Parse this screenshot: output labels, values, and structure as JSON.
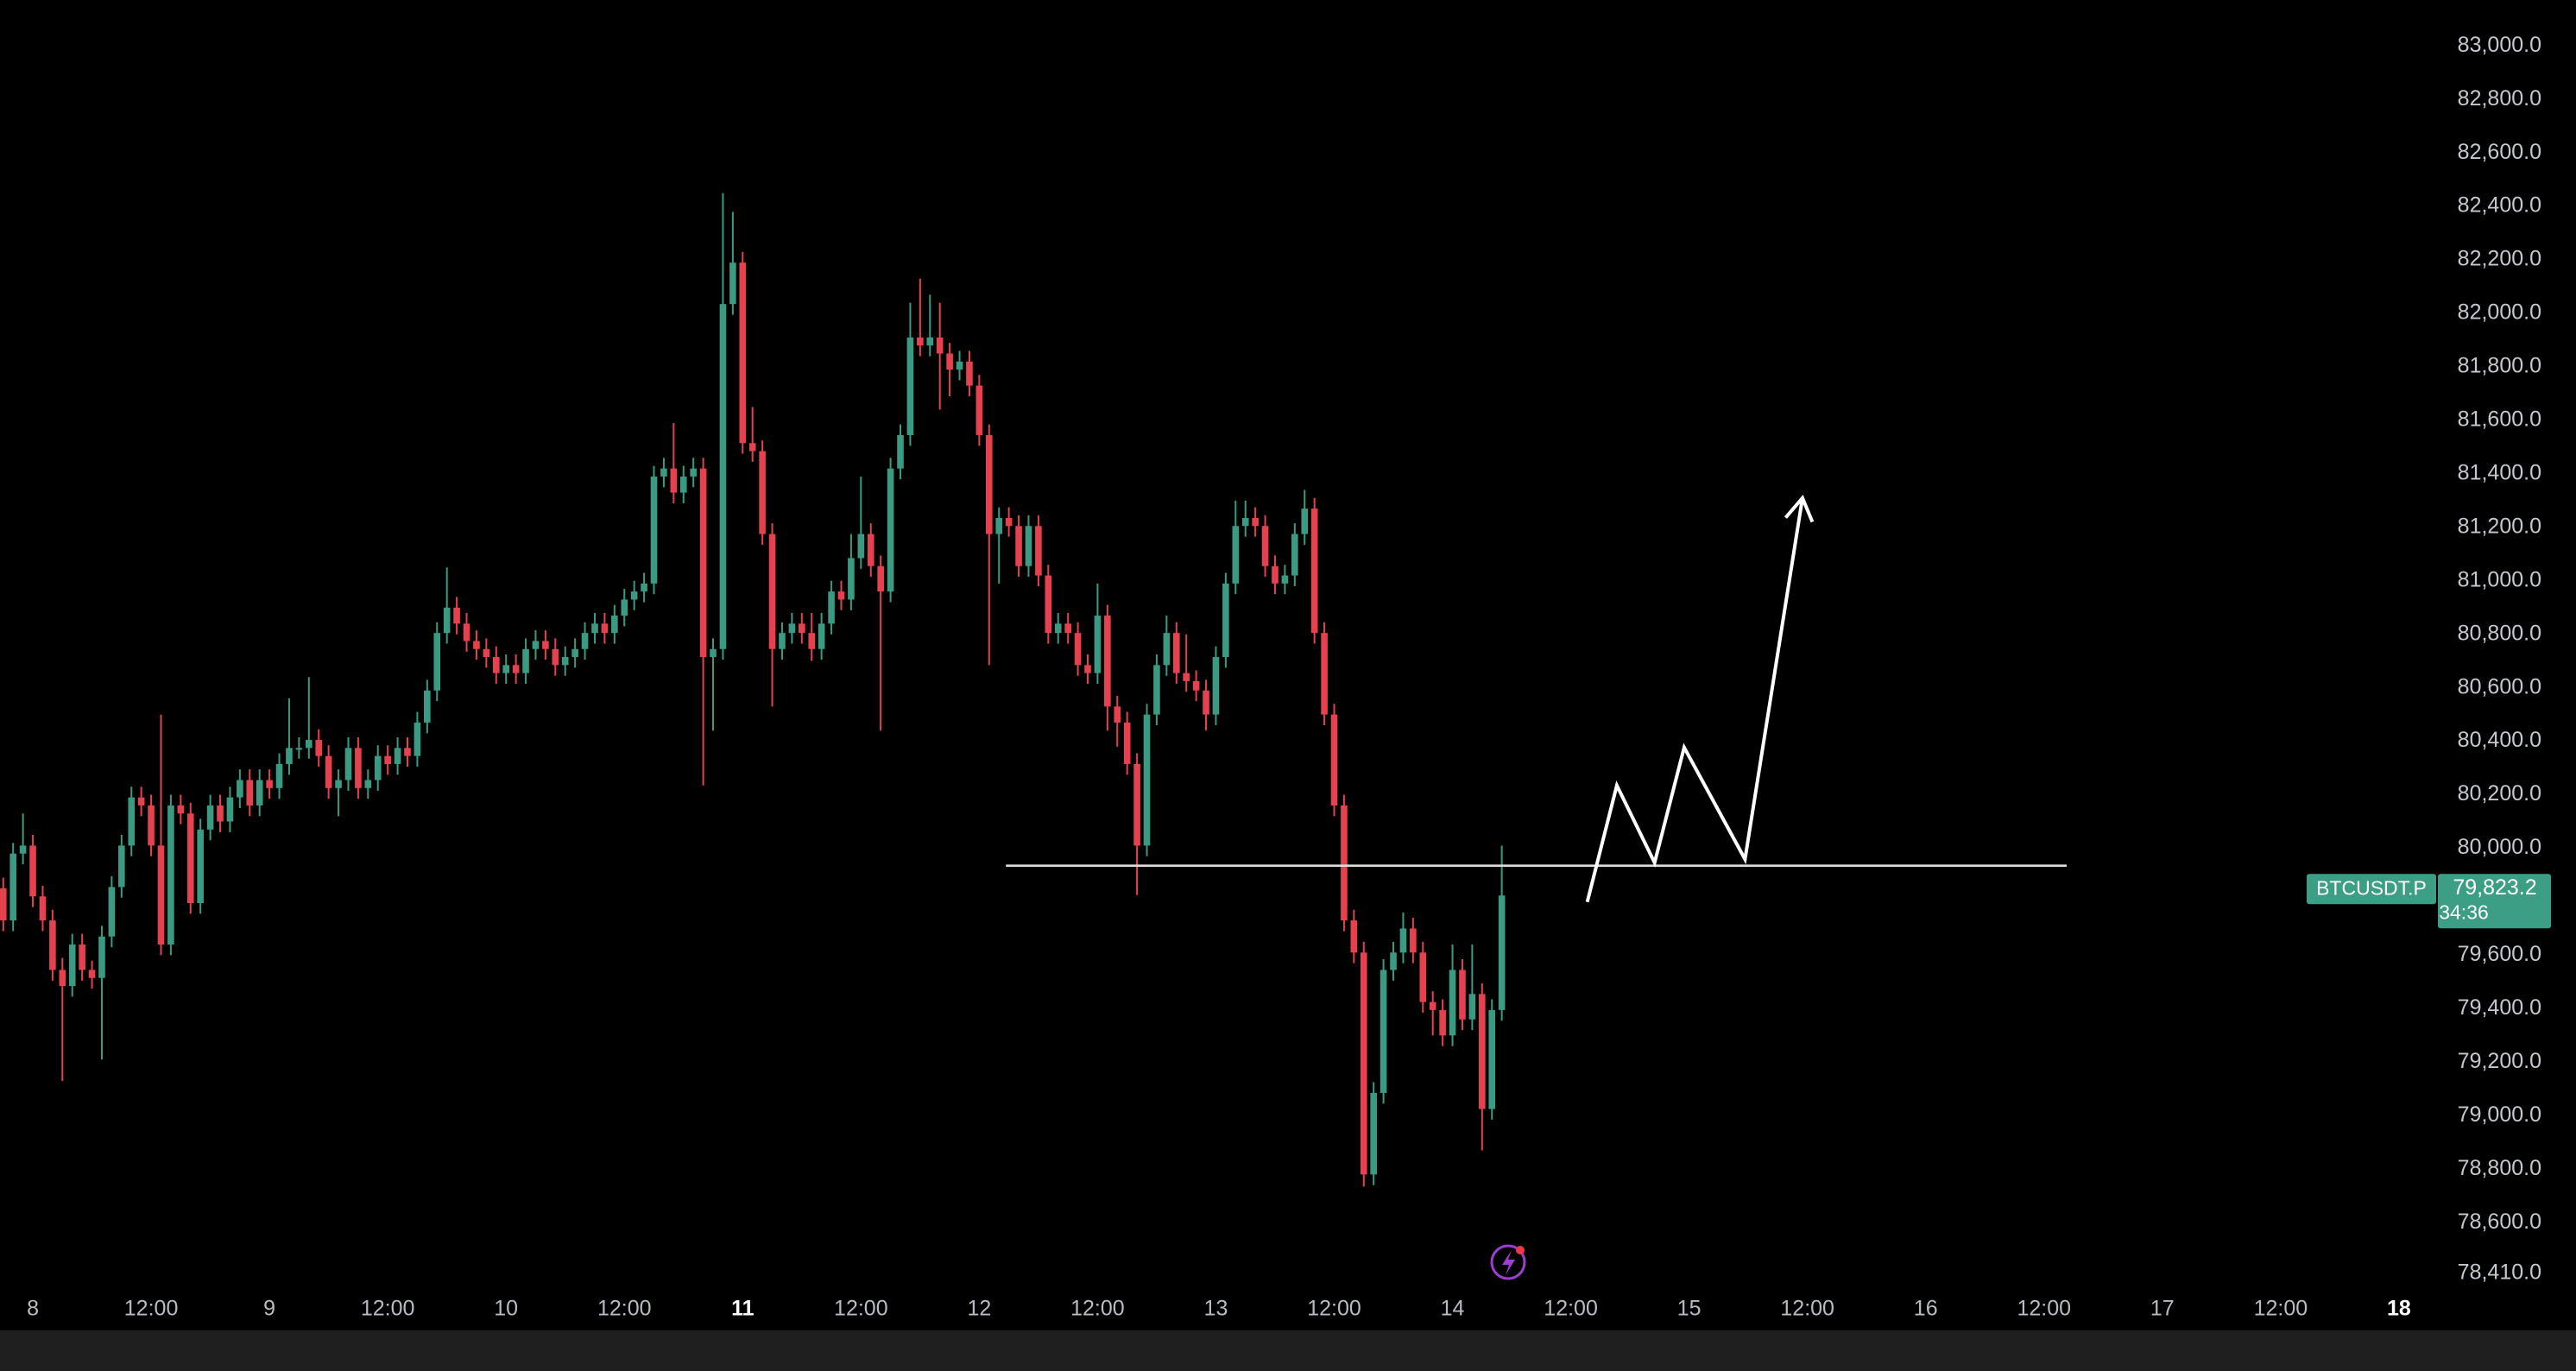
{
  "chart_data": {
    "type": "candlestick",
    "symbol": "BTCUSDT.P",
    "countdown": "34:36",
    "last_price": {
      "value": 79823.2,
      "label": "79,823.2"
    },
    "up_color": "#3a9b82",
    "down_color": "#e5414f",
    "xlim": [
      -3.33,
      243.6
    ],
    "ylim": [
      78410,
      83172
    ],
    "xticks": [
      {
        "value": 0,
        "label": "8"
      },
      {
        "value": 12,
        "label": "12:00"
      },
      {
        "value": 24,
        "label": "9"
      },
      {
        "value": 36,
        "label": "12:00"
      },
      {
        "value": 48,
        "label": "10"
      },
      {
        "value": 60,
        "label": "12:00"
      },
      {
        "value": 72,
        "label": "11",
        "bold": true
      },
      {
        "value": 84,
        "label": "12:00"
      },
      {
        "value": 96,
        "label": "12"
      },
      {
        "value": 108,
        "label": "12:00"
      },
      {
        "value": 120,
        "label": "13"
      },
      {
        "value": 132,
        "label": "12:00"
      },
      {
        "value": 144,
        "label": "14"
      },
      {
        "value": 156,
        "label": "12:00"
      },
      {
        "value": 168,
        "label": "15"
      },
      {
        "value": 180,
        "label": "12:00"
      },
      {
        "value": 192,
        "label": "16"
      },
      {
        "value": 204,
        "label": "12:00"
      },
      {
        "value": 216,
        "label": "17"
      },
      {
        "value": 228,
        "label": "12:00"
      },
      {
        "value": 240,
        "label": "18",
        "bold": true
      }
    ],
    "yticks": [
      {
        "value": 83000,
        "label": "83,000.0"
      },
      {
        "value": 82800,
        "label": "82,800.0"
      },
      {
        "value": 82600,
        "label": "82,600.0"
      },
      {
        "value": 82400,
        "label": "82,400.0"
      },
      {
        "value": 82200,
        "label": "82,200.0"
      },
      {
        "value": 82000,
        "label": "82,000.0"
      },
      {
        "value": 81800,
        "label": "81,800.0"
      },
      {
        "value": 81600,
        "label": "81,600.0"
      },
      {
        "value": 81400,
        "label": "81,400.0"
      },
      {
        "value": 81200,
        "label": "81,200.0"
      },
      {
        "value": 81000,
        "label": "81,000.0"
      },
      {
        "value": 80800,
        "label": "80,800.0"
      },
      {
        "value": 80600,
        "label": "80,600.0"
      },
      {
        "value": 80400,
        "label": "80,400.0"
      },
      {
        "value": 80200,
        "label": "80,200.0"
      },
      {
        "value": 80000,
        "label": "80,000.0"
      },
      {
        "value": 79600,
        "label": "79,600.0"
      },
      {
        "value": 79400,
        "label": "79,400.0"
      },
      {
        "value": 79200,
        "label": "79,200.0"
      },
      {
        "value": 79000,
        "label": "79,000.0"
      },
      {
        "value": 78800,
        "label": "78,800.0"
      },
      {
        "value": 78600,
        "label": "78,600.0"
      },
      {
        "value": 78410,
        "label": "78,410.0"
      }
    ],
    "x": [
      -3,
      -2,
      -1,
      0,
      1,
      2,
      3,
      4,
      5,
      6,
      7,
      8,
      9,
      10,
      11,
      12,
      13,
      14,
      15,
      16,
      17,
      18,
      19,
      20,
      21,
      22,
      23,
      24,
      25,
      26,
      27,
      28,
      29,
      30,
      31,
      32,
      33,
      34,
      35,
      36,
      37,
      38,
      39,
      40,
      41,
      42,
      43,
      44,
      45,
      46,
      47,
      48,
      49,
      50,
      51,
      52,
      53,
      54,
      55,
      56,
      57,
      58,
      59,
      60,
      61,
      62,
      63,
      64,
      65,
      66,
      67,
      68,
      69,
      70,
      71,
      72,
      73,
      74,
      75,
      76,
      77,
      78,
      79,
      80,
      81,
      82,
      83,
      84,
      85,
      86,
      87,
      88,
      89,
      90,
      91,
      92,
      93,
      94,
      95,
      96,
      97,
      98,
      99,
      100,
      101,
      102,
      103,
      104,
      105,
      106,
      107,
      108,
      109,
      110,
      111,
      112,
      113,
      114,
      115,
      116,
      117,
      118,
      119,
      120,
      121,
      122,
      123,
      124,
      125,
      126,
      127,
      128,
      129,
      130,
      131,
      132,
      133,
      134,
      135,
      136,
      137,
      138,
      139,
      140,
      141,
      142,
      143,
      144,
      145,
      146,
      147,
      148,
      149
    ],
    "open": [
      79850,
      79730,
      79980,
      80010,
      79820,
      79730,
      79545,
      79485,
      79640,
      79545,
      79515,
      79670,
      79855,
      80010,
      80190,
      80160,
      80010,
      79640,
      80160,
      80130,
      79795,
      80070,
      80160,
      80100,
      80190,
      80255,
      80160,
      80255,
      80225,
      80315,
      80375,
      80375,
      80405,
      80345,
      80225,
      80255,
      80375,
      80225,
      80255,
      80345,
      80315,
      80375,
      80345,
      80470,
      80590,
      80805,
      80900,
      80840,
      80775,
      80745,
      80715,
      80655,
      80685,
      80655,
      80745,
      80775,
      80745,
      80685,
      80715,
      80745,
      80805,
      80840,
      80805,
      80870,
      80930,
      80960,
      80990,
      81390,
      81420,
      81330,
      81390,
      81420,
      80715,
      80745,
      82035,
      82190,
      81515,
      81485,
      81175,
      80745,
      80805,
      80840,
      80805,
      80745,
      80840,
      80960,
      80930,
      81085,
      81175,
      81055,
      80960,
      81420,
      81545,
      81910,
      81880,
      81910,
      81850,
      81790,
      81820,
      81730,
      81545,
      81175,
      81235,
      81205,
      81055,
      81205,
      81020,
      80805,
      80840,
      80805,
      80685,
      80655,
      80870,
      80530,
      80470,
      80315,
      80010,
      80500,
      80685,
      80805,
      80655,
      80625,
      80590,
      80500,
      80715,
      80990,
      81205,
      81235,
      81205,
      81055,
      80990,
      81020,
      81175,
      81270,
      80805,
      80500,
      80160,
      79730,
      79610,
      78780,
      79085,
      79545,
      79610,
      79700,
      79610,
      79425,
      79395,
      79300,
      79545,
      79360,
      79455,
      79025,
      79395
    ],
    "high": [
      79890,
      80020,
      80130,
      80050,
      79860,
      79770,
      79590,
      79680,
      79680,
      79580,
      79710,
      79895,
      80050,
      80230,
      80230,
      80200,
      80500,
      80200,
      80200,
      80170,
      80110,
      80200,
      80200,
      80230,
      80295,
      80295,
      80295,
      80295,
      80355,
      80560,
      80415,
      80640,
      80445,
      80385,
      80295,
      80415,
      80415,
      80295,
      80385,
      80385,
      80415,
      80415,
      80510,
      80630,
      80845,
      81050,
      80940,
      80880,
      80815,
      80785,
      80755,
      80725,
      80725,
      80785,
      80815,
      80815,
      80785,
      80755,
      80785,
      80845,
      80880,
      80880,
      80910,
      80970,
      81000,
      81030,
      81430,
      81460,
      81590,
      81430,
      81460,
      81460,
      80785,
      82450,
      82380,
      82230,
      81650,
      81525,
      81215,
      80845,
      80880,
      80880,
      80880,
      80880,
      81000,
      81000,
      81175,
      81390,
      81215,
      81095,
      81460,
      81585,
      82040,
      82130,
      82070,
      82040,
      81890,
      81860,
      81860,
      81770,
      81585,
      81275,
      81275,
      81245,
      81245,
      81245,
      81060,
      80880,
      80880,
      80845,
      80725,
      80990,
      80910,
      80570,
      80510,
      80355,
      80540,
      80725,
      80870,
      80845,
      80800,
      80665,
      80630,
      80755,
      81030,
      81300,
      81300,
      81275,
      81245,
      81095,
      81060,
      81215,
      81340,
      81310,
      80845,
      80540,
      80200,
      79770,
      79650,
      79125,
      79585,
      79650,
      79760,
      79740,
      79650,
      79465,
      79435,
      79640,
      79585,
      79640,
      79495,
      79435,
      80010
    ],
    "low": [
      79690,
      79690,
      79940,
      79780,
      79690,
      79505,
      79130,
      79445,
      79505,
      79475,
      79210,
      79630,
      79815,
      79970,
      80120,
      79970,
      79600,
      79600,
      80090,
      79755,
      79755,
      80030,
      80060,
      80060,
      80150,
      80120,
      80120,
      80185,
      80185,
      80275,
      80335,
      80335,
      80305,
      80185,
      80120,
      80215,
      80185,
      80185,
      80215,
      80275,
      80275,
      80305,
      80305,
      80430,
      80550,
      80765,
      80800,
      80735,
      80705,
      80675,
      80615,
      80615,
      80615,
      80615,
      80705,
      80705,
      80645,
      80645,
      80675,
      80705,
      80765,
      80765,
      80765,
      80830,
      80890,
      80920,
      80950,
      81350,
      81290,
      81290,
      81350,
      80235,
      80440,
      80705,
      81995,
      81475,
      81445,
      81135,
      80530,
      80705,
      80765,
      80765,
      80700,
      80705,
      80800,
      80890,
      80890,
      81045,
      81015,
      80440,
      80920,
      81380,
      81505,
      81840,
      81840,
      81640,
      81690,
      81750,
      81690,
      81505,
      80685,
      80990,
      81165,
      81015,
      81015,
      80980,
      80765,
      80765,
      80765,
      80645,
      80615,
      80615,
      80440,
      80380,
      80275,
      79825,
      79970,
      80460,
      80645,
      80615,
      80585,
      80550,
      80440,
      80460,
      80675,
      80950,
      81165,
      81165,
      81015,
      80950,
      80950,
      80980,
      81135,
      80765,
      80460,
      80120,
      79690,
      79570,
      78735,
      78740,
      79045,
      79505,
      79570,
      79570,
      79385,
      79300,
      79260,
      79260,
      79320,
      79320,
      78870,
      78985,
      79355
    ],
    "close": [
      79730,
      79980,
      80010,
      79820,
      79730,
      79545,
      79485,
      79640,
      79545,
      79515,
      79670,
      79855,
      80010,
      80190,
      80160,
      80010,
      79640,
      80160,
      80130,
      79795,
      80070,
      80160,
      80100,
      80190,
      80255,
      80160,
      80255,
      80225,
      80315,
      80375,
      80375,
      80405,
      80345,
      80225,
      80255,
      80375,
      80225,
      80255,
      80345,
      80315,
      80375,
      80345,
      80470,
      80590,
      80805,
      80900,
      80840,
      80775,
      80745,
      80715,
      80655,
      80685,
      80655,
      80745,
      80775,
      80745,
      80685,
      80715,
      80745,
      80805,
      80840,
      80805,
      80870,
      80930,
      80960,
      80990,
      81390,
      81420,
      81330,
      81390,
      81420,
      80715,
      80745,
      82035,
      82190,
      81515,
      81485,
      81175,
      80745,
      80805,
      80840,
      80805,
      80745,
      80840,
      80960,
      80930,
      81085,
      81175,
      81055,
      80960,
      81420,
      81545,
      81910,
      81880,
      81910,
      81850,
      81790,
      81820,
      81730,
      81545,
      81175,
      81235,
      81205,
      81055,
      81205,
      81020,
      80805,
      80840,
      80805,
      80685,
      80655,
      80870,
      80530,
      80470,
      80315,
      80010,
      80500,
      80685,
      80805,
      80655,
      80625,
      80590,
      80500,
      80715,
      80990,
      81205,
      81235,
      81205,
      81055,
      80990,
      81020,
      81175,
      81270,
      80805,
      80500,
      80160,
      79730,
      79610,
      78780,
      79085,
      79545,
      79610,
      79700,
      79610,
      79425,
      79395,
      79300,
      79545,
      79360,
      79455,
      79025,
      79395,
      79823.2
    ],
    "drawings": [
      {
        "type": "hline",
        "color": "#dddddd",
        "value": 79935,
        "x": [
          98.7,
          206.3
        ]
      },
      {
        "type": "arrow",
        "color": "#ffffff",
        "x": [
          157.67,
          160.67,
          164.5,
          167.5,
          173.67,
          179.5
        ],
        "y": [
          79799,
          80235,
          79946,
          80377,
          79959,
          81310
        ]
      }
    ]
  }
}
